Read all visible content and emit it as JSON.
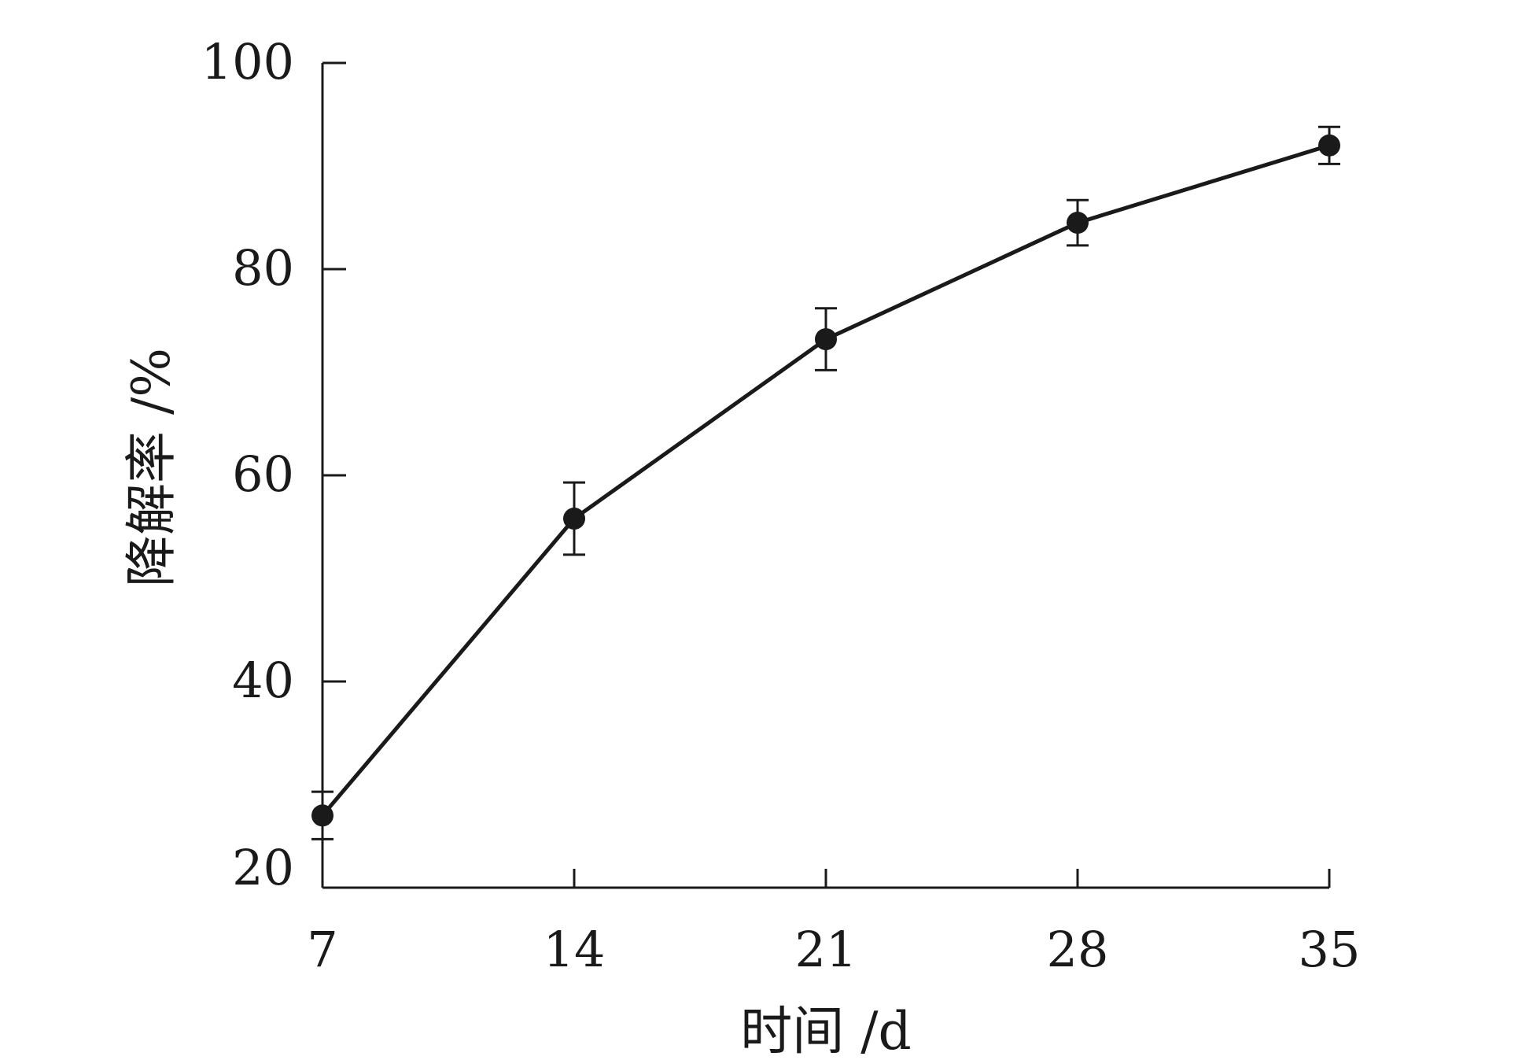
{
  "chart_data": {
    "type": "line",
    "title": "",
    "xlabel": "时间 /d",
    "ylabel": "降解率 /%",
    "x": [
      7,
      14,
      21,
      28,
      35
    ],
    "xlim": [
      7,
      35
    ],
    "ylim": [
      20,
      100
    ],
    "x_ticks": [
      "7",
      "14",
      "21",
      "28",
      "35"
    ],
    "y_ticks": [
      "20",
      "40",
      "60",
      "80",
      "100"
    ],
    "grid": false,
    "series": [
      {
        "values": [
          27.0,
          55.8,
          73.2,
          84.5,
          92.0
        ],
        "error": [
          2.3,
          3.5,
          3.0,
          2.2,
          1.8
        ]
      }
    ],
    "colors": {
      "line": "#1a1a1a",
      "axis": "#1a1a1a"
    }
  }
}
